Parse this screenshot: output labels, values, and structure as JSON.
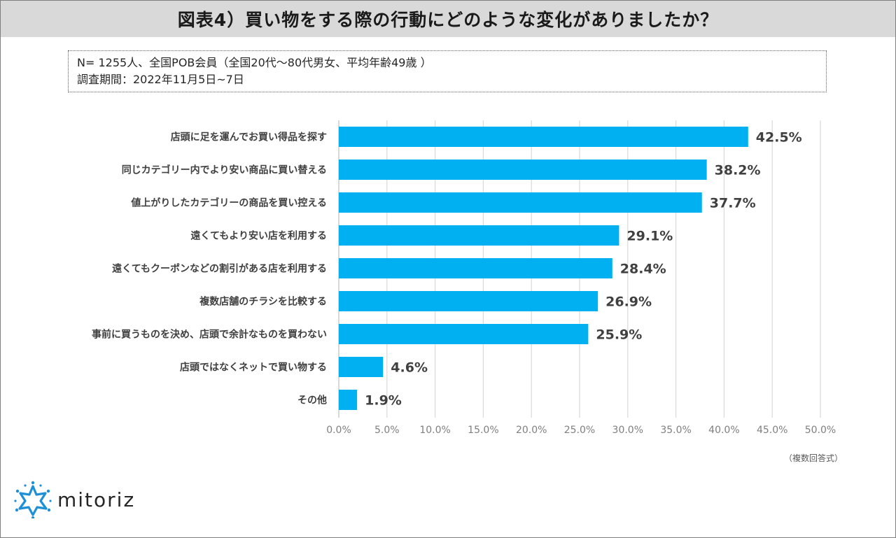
{
  "title": "図表4）買い物をする際の行動にどのような変化がありましたか？",
  "survey": {
    "line1": "N= 1255人、全国POB会員（全国20代～80代男女、平均年齢49歳 ）",
    "line2": "調査期間：2022年11月5日~7日"
  },
  "note": "（複数回答式）",
  "logo": {
    "text": "mitoriz",
    "icon": "mitoriz-star-logo-icon"
  },
  "colors": {
    "bar": "#00b0f0",
    "grid": "#d9d9d9",
    "title_bg": "#d9d9d9"
  },
  "chart_data": {
    "type": "bar",
    "orientation": "horizontal",
    "categories": [
      "店頭に足を運んでお買い得品を探す",
      "同じカテゴリー内でより安い商品に買い替える",
      "値上がりしたカテゴリーの商品を買い控える",
      "遠くてもより安い店を利用する",
      "遠くてもクーポンなどの割引がある店を利用する",
      "複数店舗のチラシを比較する",
      "事前に買うものを決め、店頭で余計なものを買わない",
      "店頭ではなくネットで買い物する",
      "その他"
    ],
    "values": [
      42.5,
      38.2,
      37.7,
      29.1,
      28.4,
      26.9,
      25.9,
      4.6,
      1.9
    ],
    "data_labels": [
      "42.5%",
      "38.2%",
      "37.7%",
      "29.1%",
      "28.4%",
      "26.9%",
      "25.9%",
      "4.6%",
      "1.9%"
    ],
    "xlim": [
      0,
      50
    ],
    "x_ticks": [
      "0.0%",
      "5.0%",
      "10.0%",
      "15.0%",
      "20.0%",
      "25.0%",
      "30.0%",
      "35.0%",
      "40.0%",
      "45.0%",
      "50.0%"
    ],
    "grid": true,
    "legend": "none"
  }
}
